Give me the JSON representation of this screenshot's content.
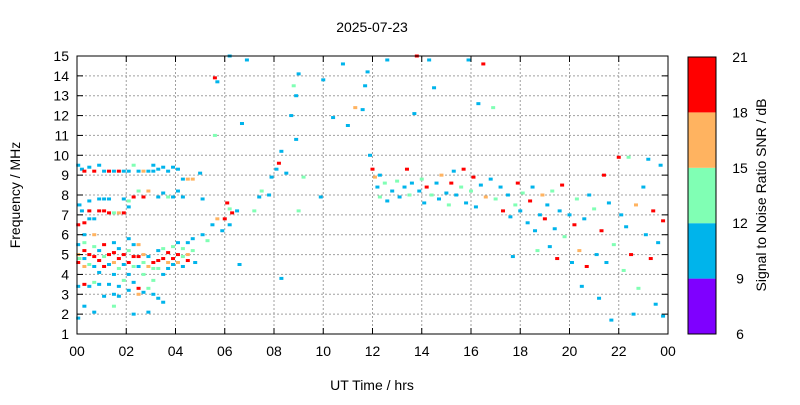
{
  "chart_data": {
    "type": "scatter",
    "title": "2025-07-23",
    "xlabel": "UT Time / hrs",
    "ylabel": "Frequency / MHz",
    "xlim": [
      0,
      24
    ],
    "ylim": [
      1,
      15
    ],
    "grid": true,
    "x_ticks": [
      "00",
      "02",
      "04",
      "06",
      "08",
      "10",
      "12",
      "14",
      "16",
      "18",
      "20",
      "22",
      "00"
    ],
    "y_ticks": [
      "1",
      "2",
      "3",
      "4",
      "5",
      "6",
      "7",
      "8",
      "9",
      "10",
      "11",
      "12",
      "13",
      "14",
      "15"
    ],
    "colorbar": {
      "label": "Signal to Noise Ratio SNR / dB",
      "ticks": [
        "6",
        "9",
        "12",
        "15",
        "18",
        "21"
      ],
      "range": [
        6,
        21
      ],
      "bins": [
        {
          "min": 6,
          "max": 9,
          "color": "#7f00ff"
        },
        {
          "min": 9,
          "max": 12,
          "color": "#00b4eb"
        },
        {
          "min": 12,
          "max": 15,
          "color": "#80ffb4"
        },
        {
          "min": 15,
          "max": 18,
          "color": "#ffb360"
        },
        {
          "min": 18,
          "max": 21,
          "color": "#ff0000"
        }
      ]
    },
    "points_format": [
      "hour",
      "frequency_mhz",
      "snr_db"
    ],
    "points": [
      [
        0.05,
        9.5,
        10
      ],
      [
        0.05,
        6.5,
        19
      ],
      [
        0.05,
        5.5,
        10
      ],
      [
        0.05,
        5.0,
        16
      ],
      [
        0.05,
        4.6,
        19
      ],
      [
        0.05,
        3.4,
        10
      ],
      [
        0.05,
        1.8,
        10
      ],
      [
        0.1,
        7.5,
        10
      ],
      [
        0.1,
        4.8,
        13
      ],
      [
        0.2,
        9.3,
        10
      ],
      [
        0.2,
        7.2,
        10
      ],
      [
        0.3,
        9.2,
        19
      ],
      [
        0.3,
        6.6,
        19
      ],
      [
        0.3,
        6.0,
        10
      ],
      [
        0.3,
        5.6,
        13
      ],
      [
        0.3,
        5.2,
        19
      ],
      [
        0.3,
        4.8,
        10
      ],
      [
        0.3,
        4.4,
        16
      ],
      [
        0.3,
        3.5,
        19
      ],
      [
        0.3,
        2.4,
        10
      ],
      [
        0.5,
        9.4,
        10
      ],
      [
        0.5,
        7.2,
        19
      ],
      [
        0.5,
        7.7,
        10
      ],
      [
        0.5,
        6.8,
        10
      ],
      [
        0.5,
        5.0,
        19
      ],
      [
        0.5,
        4.5,
        13
      ],
      [
        0.5,
        3.4,
        10
      ],
      [
        0.7,
        9.2,
        19
      ],
      [
        0.7,
        6.8,
        10
      ],
      [
        0.7,
        6.0,
        16
      ],
      [
        0.7,
        5.4,
        13
      ],
      [
        0.7,
        4.9,
        19
      ],
      [
        0.7,
        4.4,
        10
      ],
      [
        0.7,
        3.6,
        13
      ],
      [
        0.7,
        2.1,
        10
      ],
      [
        0.9,
        9.5,
        10
      ],
      [
        0.9,
        7.8,
        10
      ],
      [
        0.9,
        7.2,
        19
      ],
      [
        0.9,
        5.2,
        10
      ],
      [
        0.9,
        4.7,
        19
      ],
      [
        0.9,
        4.1,
        10
      ],
      [
        0.9,
        3.5,
        10
      ],
      [
        1.1,
        9.2,
        10
      ],
      [
        1.1,
        7.8,
        10
      ],
      [
        1.1,
        7.2,
        19
      ],
      [
        1.1,
        5.5,
        19
      ],
      [
        1.1,
        4.9,
        13
      ],
      [
        1.1,
        4.4,
        19
      ],
      [
        1.1,
        2.9,
        10
      ],
      [
        1.3,
        9.2,
        19
      ],
      [
        1.3,
        7.1,
        19
      ],
      [
        1.3,
        7.8,
        10
      ],
      [
        1.3,
        5.0,
        19
      ],
      [
        1.3,
        4.5,
        10
      ],
      [
        1.3,
        3.5,
        10
      ],
      [
        1.5,
        9.2,
        10
      ],
      [
        1.5,
        7.1,
        13
      ],
      [
        1.5,
        5.6,
        10
      ],
      [
        1.5,
        5.1,
        19
      ],
      [
        1.5,
        4.6,
        16
      ],
      [
        1.5,
        4.0,
        10
      ],
      [
        1.5,
        3.0,
        10
      ],
      [
        1.5,
        2.4,
        13
      ],
      [
        1.7,
        9.2,
        19
      ],
      [
        1.7,
        7.1,
        16
      ],
      [
        1.7,
        5.3,
        10
      ],
      [
        1.7,
        4.8,
        19
      ],
      [
        1.7,
        4.3,
        13
      ],
      [
        1.7,
        3.4,
        10
      ],
      [
        1.7,
        2.9,
        10
      ],
      [
        1.9,
        9.2,
        10
      ],
      [
        1.9,
        7.8,
        10
      ],
      [
        1.9,
        7.1,
        19
      ],
      [
        1.9,
        5.0,
        19
      ],
      [
        1.9,
        4.5,
        10
      ],
      [
        1.9,
        3.7,
        13
      ],
      [
        2.1,
        9.2,
        10
      ],
      [
        2.1,
        7.7,
        13
      ],
      [
        2.1,
        7.4,
        10
      ],
      [
        2.1,
        5.8,
        10
      ],
      [
        2.1,
        5.2,
        13
      ],
      [
        2.1,
        4.6,
        19
      ],
      [
        2.1,
        4.0,
        10
      ],
      [
        2.1,
        3.2,
        10
      ],
      [
        2.3,
        9.5,
        13
      ],
      [
        2.3,
        7.9,
        19
      ],
      [
        2.3,
        5.5,
        10
      ],
      [
        2.3,
        4.9,
        19
      ],
      [
        2.3,
        4.4,
        13
      ],
      [
        2.3,
        3.6,
        10
      ],
      [
        2.3,
        2.0,
        10
      ],
      [
        2.5,
        9.2,
        10
      ],
      [
        2.5,
        8.2,
        13
      ],
      [
        2.5,
        5.5,
        16
      ],
      [
        2.5,
        4.9,
        19
      ],
      [
        2.5,
        4.4,
        10
      ],
      [
        2.5,
        3.3,
        19
      ],
      [
        2.5,
        3.0,
        16
      ],
      [
        2.7,
        9.2,
        16
      ],
      [
        2.7,
        7.9,
        19
      ],
      [
        2.7,
        5.0,
        16
      ],
      [
        2.7,
        4.6,
        13
      ],
      [
        2.7,
        4.0,
        13
      ],
      [
        2.7,
        3.1,
        10
      ],
      [
        2.9,
        9.2,
        10
      ],
      [
        2.9,
        8.2,
        16
      ],
      [
        2.9,
        4.9,
        10
      ],
      [
        2.9,
        4.4,
        16
      ],
      [
        2.9,
        3.3,
        13
      ],
      [
        2.9,
        2.1,
        10
      ],
      [
        3.1,
        9.5,
        10
      ],
      [
        3.1,
        9.2,
        10
      ],
      [
        3.1,
        4.6,
        19
      ],
      [
        3.1,
        4.3,
        13
      ],
      [
        3.1,
        3.7,
        13
      ],
      [
        3.1,
        3.0,
        10
      ],
      [
        3.3,
        9.3,
        10
      ],
      [
        3.3,
        7.9,
        10
      ],
      [
        3.3,
        5.2,
        10
      ],
      [
        3.3,
        4.7,
        19
      ],
      [
        3.3,
        4.3,
        13
      ],
      [
        3.3,
        2.8,
        10
      ],
      [
        3.5,
        9.4,
        10
      ],
      [
        3.5,
        8.1,
        10
      ],
      [
        3.5,
        5.3,
        13
      ],
      [
        3.5,
        4.8,
        19
      ],
      [
        3.5,
        4.0,
        10
      ],
      [
        3.5,
        2.6,
        10
      ],
      [
        3.7,
        9.2,
        10
      ],
      [
        3.7,
        7.9,
        13
      ],
      [
        3.7,
        5.1,
        19
      ],
      [
        3.7,
        4.6,
        16
      ],
      [
        3.7,
        4.3,
        10
      ],
      [
        3.9,
        9.4,
        10
      ],
      [
        3.9,
        7.9,
        10
      ],
      [
        3.9,
        5.4,
        13
      ],
      [
        3.9,
        4.8,
        19
      ],
      [
        3.9,
        4.5,
        10
      ],
      [
        4.1,
        9.3,
        10
      ],
      [
        4.1,
        8.2,
        10
      ],
      [
        4.1,
        5.6,
        10
      ],
      [
        4.1,
        5.0,
        19
      ],
      [
        4.1,
        4.6,
        16
      ],
      [
        4.3,
        8.8,
        10
      ],
      [
        4.3,
        7.9,
        10
      ],
      [
        4.3,
        5.3,
        13
      ],
      [
        4.3,
        4.9,
        13
      ],
      [
        4.3,
        4.4,
        10
      ],
      [
        4.5,
        8.8,
        16
      ],
      [
        4.5,
        5.6,
        10
      ],
      [
        4.5,
        5.0,
        16
      ],
      [
        4.5,
        4.7,
        19
      ],
      [
        4.7,
        8.8,
        16
      ],
      [
        4.7,
        5.8,
        10
      ],
      [
        4.7,
        5.2,
        13
      ],
      [
        4.8,
        4.6,
        10
      ],
      [
        5.0,
        9.1,
        10
      ],
      [
        5.1,
        6.0,
        10
      ],
      [
        5.1,
        7.8,
        10
      ],
      [
        5.3,
        5.7,
        13
      ],
      [
        5.5,
        6.5,
        10
      ],
      [
        5.6,
        11.0,
        13
      ],
      [
        5.7,
        6.8,
        16
      ],
      [
        5.7,
        13.7,
        10
      ],
      [
        5.6,
        13.9,
        19
      ],
      [
        5.9,
        6.2,
        10
      ],
      [
        6.0,
        6.8,
        19
      ],
      [
        6.1,
        7.6,
        19
      ],
      [
        6.2,
        7.3,
        13
      ],
      [
        6.2,
        6.5,
        10
      ],
      [
        6.2,
        15.0,
        10
      ],
      [
        6.3,
        7.1,
        19
      ],
      [
        6.5,
        7.2,
        10
      ],
      [
        6.6,
        4.5,
        10
      ],
      [
        6.7,
        11.6,
        10
      ],
      [
        6.9,
        14.8,
        10
      ],
      [
        7.2,
        7.2,
        13
      ],
      [
        7.4,
        7.9,
        10
      ],
      [
        7.5,
        8.2,
        13
      ],
      [
        7.8,
        8.0,
        10
      ],
      [
        7.9,
        8.9,
        10
      ],
      [
        8.1,
        9.3,
        10
      ],
      [
        8.2,
        9.6,
        19
      ],
      [
        8.3,
        10.2,
        10
      ],
      [
        8.3,
        3.8,
        10
      ],
      [
        8.5,
        9.1,
        10
      ],
      [
        8.7,
        12.0,
        10
      ],
      [
        8.8,
        13.5,
        13
      ],
      [
        8.9,
        13.0,
        10
      ],
      [
        9.0,
        14.1,
        10
      ],
      [
        8.9,
        10.8,
        10
      ],
      [
        9.0,
        7.2,
        13
      ],
      [
        9.2,
        8.9,
        13
      ],
      [
        9.9,
        7.9,
        10
      ],
      [
        10.0,
        13.8,
        10
      ],
      [
        10.4,
        11.9,
        10
      ],
      [
        10.8,
        14.6,
        10
      ],
      [
        11.0,
        11.5,
        10
      ],
      [
        11.3,
        12.4,
        16
      ],
      [
        11.6,
        12.3,
        10
      ],
      [
        11.7,
        13.5,
        10
      ],
      [
        11.8,
        14.2,
        10
      ],
      [
        11.9,
        10.0,
        10
      ],
      [
        12.0,
        9.3,
        19
      ],
      [
        12.1,
        8.9,
        16
      ],
      [
        12.2,
        8.4,
        10
      ],
      [
        12.3,
        7.9,
        13
      ],
      [
        12.3,
        9.0,
        10
      ],
      [
        12.5,
        8.6,
        13
      ],
      [
        12.6,
        7.7,
        10
      ],
      [
        12.6,
        14.8,
        10
      ],
      [
        12.8,
        8.2,
        10
      ],
      [
        13.0,
        8.7,
        13
      ],
      [
        13.1,
        7.9,
        10
      ],
      [
        13.3,
        8.4,
        10
      ],
      [
        13.4,
        9.3,
        19
      ],
      [
        13.5,
        8.0,
        13
      ],
      [
        13.6,
        8.6,
        10
      ],
      [
        13.7,
        12.1,
        10
      ],
      [
        13.8,
        15.0,
        19
      ],
      [
        13.9,
        8.2,
        10
      ],
      [
        14.0,
        8.8,
        13
      ],
      [
        14.1,
        7.6,
        10
      ],
      [
        14.2,
        8.4,
        19
      ],
      [
        14.3,
        14.8,
        10
      ],
      [
        14.4,
        8.0,
        13
      ],
      [
        14.5,
        13.4,
        10
      ],
      [
        14.6,
        8.6,
        10
      ],
      [
        14.7,
        7.8,
        10
      ],
      [
        14.8,
        9.0,
        16
      ],
      [
        15.0,
        8.1,
        10
      ],
      [
        15.1,
        7.5,
        13
      ],
      [
        15.2,
        8.6,
        19
      ],
      [
        15.3,
        9.2,
        10
      ],
      [
        15.4,
        8.0,
        10
      ],
      [
        15.6,
        8.4,
        13
      ],
      [
        15.7,
        9.3,
        19
      ],
      [
        15.8,
        7.6,
        10
      ],
      [
        15.9,
        14.8,
        10
      ],
      [
        16.0,
        8.2,
        13
      ],
      [
        16.1,
        8.9,
        19
      ],
      [
        16.2,
        7.4,
        10
      ],
      [
        16.3,
        12.6,
        10
      ],
      [
        16.4,
        8.5,
        10
      ],
      [
        16.5,
        14.6,
        19
      ],
      [
        16.6,
        7.9,
        16
      ],
      [
        16.8,
        8.8,
        10
      ],
      [
        16.9,
        12.4,
        13
      ],
      [
        17.0,
        7.8,
        13
      ],
      [
        17.2,
        8.4,
        10
      ],
      [
        17.3,
        7.2,
        19
      ],
      [
        17.5,
        8.0,
        10
      ],
      [
        17.6,
        6.9,
        10
      ],
      [
        17.7,
        4.9,
        10
      ],
      [
        17.8,
        7.5,
        13
      ],
      [
        17.9,
        8.6,
        19
      ],
      [
        18.0,
        7.2,
        10
      ],
      [
        18.1,
        8.1,
        13
      ],
      [
        18.3,
        6.6,
        10
      ],
      [
        18.4,
        7.7,
        19
      ],
      [
        18.5,
        8.4,
        10
      ],
      [
        18.6,
        6.2,
        10
      ],
      [
        18.7,
        5.2,
        13
      ],
      [
        18.8,
        7.0,
        10
      ],
      [
        18.9,
        8.0,
        16
      ],
      [
        19.0,
        6.8,
        19
      ],
      [
        19.1,
        7.5,
        10
      ],
      [
        19.2,
        5.4,
        10
      ],
      [
        19.3,
        8.2,
        13
      ],
      [
        19.4,
        6.3,
        10
      ],
      [
        19.5,
        4.8,
        19
      ],
      [
        19.6,
        7.2,
        10
      ],
      [
        19.7,
        8.5,
        19
      ],
      [
        19.8,
        5.9,
        13
      ],
      [
        20.0,
        7.0,
        10
      ],
      [
        20.1,
        4.6,
        10
      ],
      [
        20.2,
        6.5,
        19
      ],
      [
        20.3,
        7.8,
        13
      ],
      [
        20.4,
        5.2,
        16
      ],
      [
        20.5,
        3.4,
        10
      ],
      [
        20.6,
        6.8,
        10
      ],
      [
        20.7,
        4.4,
        19
      ],
      [
        20.8,
        8.0,
        10
      ],
      [
        21.0,
        7.3,
        13
      ],
      [
        21.1,
        5.0,
        10
      ],
      [
        21.2,
        2.8,
        10
      ],
      [
        21.3,
        6.2,
        19
      ],
      [
        21.4,
        9.0,
        19
      ],
      [
        21.5,
        4.6,
        10
      ],
      [
        21.6,
        7.6,
        10
      ],
      [
        21.7,
        1.7,
        10
      ],
      [
        21.8,
        5.5,
        13
      ],
      [
        22.0,
        9.9,
        19
      ],
      [
        22.1,
        7.0,
        10
      ],
      [
        22.2,
        4.2,
        13
      ],
      [
        22.3,
        6.4,
        10
      ],
      [
        22.4,
        9.9,
        13
      ],
      [
        22.5,
        5.0,
        19
      ],
      [
        22.6,
        2.0,
        10
      ],
      [
        22.7,
        7.5,
        16
      ],
      [
        22.8,
        3.3,
        13
      ],
      [
        23.0,
        8.4,
        10
      ],
      [
        23.1,
        6.0,
        10
      ],
      [
        23.2,
        9.8,
        10
      ],
      [
        23.3,
        4.8,
        19
      ],
      [
        23.4,
        7.2,
        19
      ],
      [
        23.5,
        2.5,
        10
      ],
      [
        23.6,
        5.6,
        10
      ],
      [
        23.7,
        9.5,
        10
      ],
      [
        23.8,
        6.7,
        19
      ],
      [
        23.8,
        1.9,
        10
      ]
    ]
  }
}
